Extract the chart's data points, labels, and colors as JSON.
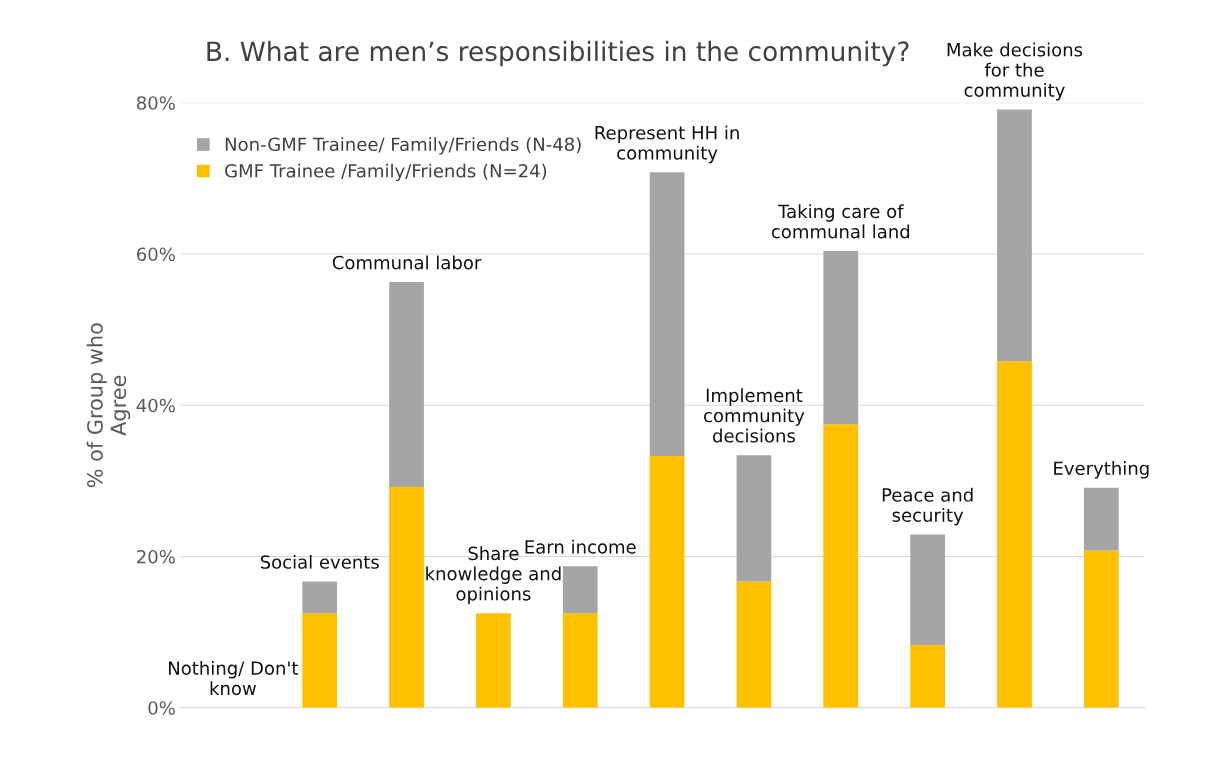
{
  "chart_data": {
    "type": "bar",
    "stacked": true,
    "title": "B. What are men’s responsibilities in the community?",
    "ylabel": "% of Group who\nAgree",
    "categories": [
      "Nothing/ Don't\nknow",
      "Social events",
      "Communal labor",
      "Share\nknowledge and\nopinions",
      "Earn income",
      "Represent HH in\ncommunity",
      "Implement\ncommunity\ndecisions",
      "Taking care of\ncommunal land",
      "Peace and\nsecurity",
      "Make decisions\nfor the\ncommunity",
      "Everything"
    ],
    "series": [
      {
        "name": "GMF Trainee /Family/Friends (N=24)",
        "color": "#ffc000",
        "values": [
          0,
          12.5,
          29.2,
          12.5,
          12.5,
          33.3,
          16.7,
          37.5,
          8.3,
          45.8,
          20.8
        ]
      },
      {
        "name": "Non-GMF Trainee/ Family/Friends (N-48)",
        "color": "#a5a5a5",
        "values": [
          0,
          4.2,
          27.1,
          0,
          6.2,
          37.5,
          16.7,
          22.9,
          14.6,
          33.3,
          8.3
        ]
      }
    ],
    "ylim": [
      0,
      80
    ],
    "yticks": [
      {
        "value": 0,
        "label": "0%"
      },
      {
        "value": 20,
        "label": "20%"
      },
      {
        "value": 40,
        "label": "40%"
      },
      {
        "value": 60,
        "label": "60%"
      },
      {
        "value": 80,
        "label": "80%"
      }
    ],
    "grid": "y",
    "legend": "top left",
    "tick_labels": "y"
  }
}
